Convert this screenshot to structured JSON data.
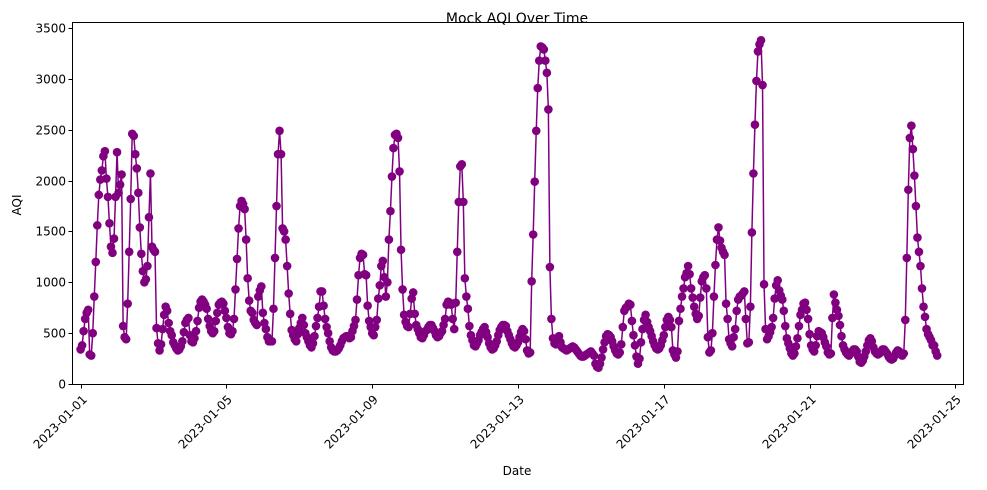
{
  "chart_data": {
    "type": "line",
    "title": "Mock AQI Over Time",
    "xlabel": "Date",
    "ylabel": "AQI",
    "xlim": [
      "2022-12-31T19:00",
      "2023-01-25T05:00"
    ],
    "ylim": [
      0,
      3550
    ],
    "x_ticks": [
      "2023-01-01",
      "2023-01-05",
      "2023-01-09",
      "2023-01-13",
      "2023-01-17",
      "2023-01-21",
      "2023-01-25"
    ],
    "x_tick_rotation": 45,
    "y_ticks": [
      0,
      500,
      1000,
      1500,
      2000,
      2500,
      3000,
      3500
    ],
    "grid": false,
    "legend": "none",
    "marker": "circle",
    "color": "#800080",
    "series": [
      {
        "start": "2023-01-01T00:00",
        "interval_hours": 1,
        "values": [
          340,
          380,
          520,
          640,
          700,
          730,
          290,
          280,
          500,
          860,
          1200,
          1560,
          1860,
          2010,
          2100,
          2240,
          2290,
          2020,
          1840,
          1580,
          1350,
          1290,
          1430,
          1840,
          2280,
          1880,
          1960,
          2060,
          570,
          460,
          440,
          790,
          1300,
          1820,
          2460,
          2440,
          2260,
          2120,
          1880,
          1540,
          1280,
          1110,
          1000,
          1030,
          1160,
          1640,
          2070,
          1350,
          1320,
          1300,
          550,
          400,
          330,
          390,
          540,
          680,
          760,
          720,
          600,
          520,
          480,
          410,
          380,
          350,
          330,
          340,
          370,
          420,
          510,
          600,
          630,
          650,
          480,
          420,
          410,
          450,
          520,
          620,
          750,
          810,
          830,
          810,
          780,
          740,
          640,
          570,
          520,
          500,
          520,
          620,
          700,
          780,
          800,
          810,
          790,
          720,
          650,
          560,
          500,
          490,
          520,
          640,
          930,
          1230,
          1530,
          1750,
          1800,
          1770,
          1720,
          1420,
          1040,
          820,
          720,
          700,
          630,
          600,
          580,
          860,
          920,
          960,
          700,
          600,
          540,
          460,
          420,
          420,
          420,
          740,
          1240,
          1750,
          2260,
          2490,
          2260,
          1530,
          1500,
          1420,
          1160,
          890,
          690,
          530,
          480,
          440,
          420,
          490,
          550,
          600,
          650,
          580,
          500,
          460,
          420,
          380,
          360,
          400,
          470,
          570,
          650,
          760,
          910,
          910,
          770,
          640,
          560,
          500,
          420,
          360,
          330,
          320,
          320,
          330,
          350,
          380,
          420,
          450,
          460,
          470,
          470,
          450,
          460,
          520,
          570,
          630,
          830,
          1070,
          1240,
          1280,
          1270,
          1080,
          1070,
          770,
          620,
          560,
          500,
          480,
          560,
          630,
          840,
          970,
          1160,
          1210,
          1050,
          860,
          1000,
          1420,
          1700,
          2040,
          2320,
          2450,
          2460,
          2420,
          2090,
          1320,
          930,
          680,
          610,
          570,
          560,
          690,
          840,
          900,
          690,
          580,
          540,
          500,
          460,
          450,
          480,
          520,
          530,
          560,
          580,
          580,
          550,
          520,
          480,
          460,
          470,
          500,
          520,
          580,
          640,
          780,
          810,
          800,
          780,
          640,
          540,
          800,
          1300,
          1790,
          2140,
          2160,
          1790,
          1040,
          860,
          740,
          570,
          480,
          430,
          380,
          370,
          400,
          430,
          480,
          510,
          540,
          560,
          510,
          460,
          400,
          360,
          340,
          350,
          380,
          420,
          480,
          530,
          560,
          580,
          580,
          570,
          520,
          480,
          440,
          400,
          370,
          360,
          380,
          410,
          460,
          510,
          540,
          520,
          440,
          330,
          300,
          310,
          1010,
          1470,
          1990,
          2490,
          2910,
          3180,
          3320,
          3310,
          3290,
          3180,
          3060,
          2700,
          1150,
          640,
          450,
          400,
          390,
          420,
          470,
          410,
          360,
          350,
          340,
          330,
          340,
          350,
          360,
          370,
          360,
          340,
          320,
          300,
          280,
          270,
          270,
          280,
          290,
          300,
          310,
          320,
          300,
          280,
          200,
          170,
          160,
          200,
          260,
          340,
          410,
          470,
          490,
          480,
          460,
          420,
          370,
          330,
          300,
          290,
          310,
          390,
          560,
          720,
          750,
          760,
          790,
          780,
          620,
          480,
          380,
          270,
          200,
          250,
          410,
          540,
          630,
          680,
          610,
          560,
          520,
          470,
          420,
          380,
          350,
          340,
          350,
          380,
          430,
          480,
          560,
          630,
          660,
          630,
          560,
          330,
          290,
          260,
          320,
          620,
          740,
          860,
          940,
          1050,
          1090,
          1160,
          1080,
          940,
          850,
          760,
          690,
          640,
          670,
          850,
          1010,
          1050,
          1070,
          940,
          460,
          310,
          330,
          500,
          860,
          1170,
          1420,
          1540,
          1410,
          1340,
          1300,
          1270,
          790,
          640,
          440,
          400,
          370,
          460,
          540,
          720,
          830,
          860,
          870,
          890,
          910,
          640,
          400,
          410,
          760,
          1490,
          2070,
          2550,
          2980,
          3270,
          3340,
          3380,
          2940,
          980,
          540,
          440,
          470,
          510,
          560,
          650,
          840,
          970,
          1020,
          920,
          870,
          830,
          720,
          570,
          450,
          400,
          350,
          300,
          280,
          300,
          370,
          450,
          570,
          680,
          730,
          790,
          800,
          730,
          640,
          490,
          380,
          340,
          320,
          380,
          470,
          520,
          510,
          500,
          460,
          410,
          370,
          310,
          290,
          300,
          650,
          880,
          800,
          730,
          670,
          580,
          470,
          380,
          340,
          310,
          290,
          280,
          300,
          320,
          340,
          340,
          320,
          270,
          220,
          210,
          230,
          270,
          320,
          380,
          430,
          450,
          420,
          360,
          320,
          300,
          290,
          300,
          320,
          340,
          340,
          320,
          300,
          270,
          250,
          240,
          250,
          280,
          310,
          330,
          320,
          290,
          280,
          300,
          630,
          1240,
          1910,
          2420,
          2540,
          2310,
          2050,
          1750,
          1440,
          1300,
          1160,
          940,
          760,
          660,
          540,
          490,
          460,
          430,
          380,
          380,
          320,
          280
        ]
      }
    ]
  }
}
